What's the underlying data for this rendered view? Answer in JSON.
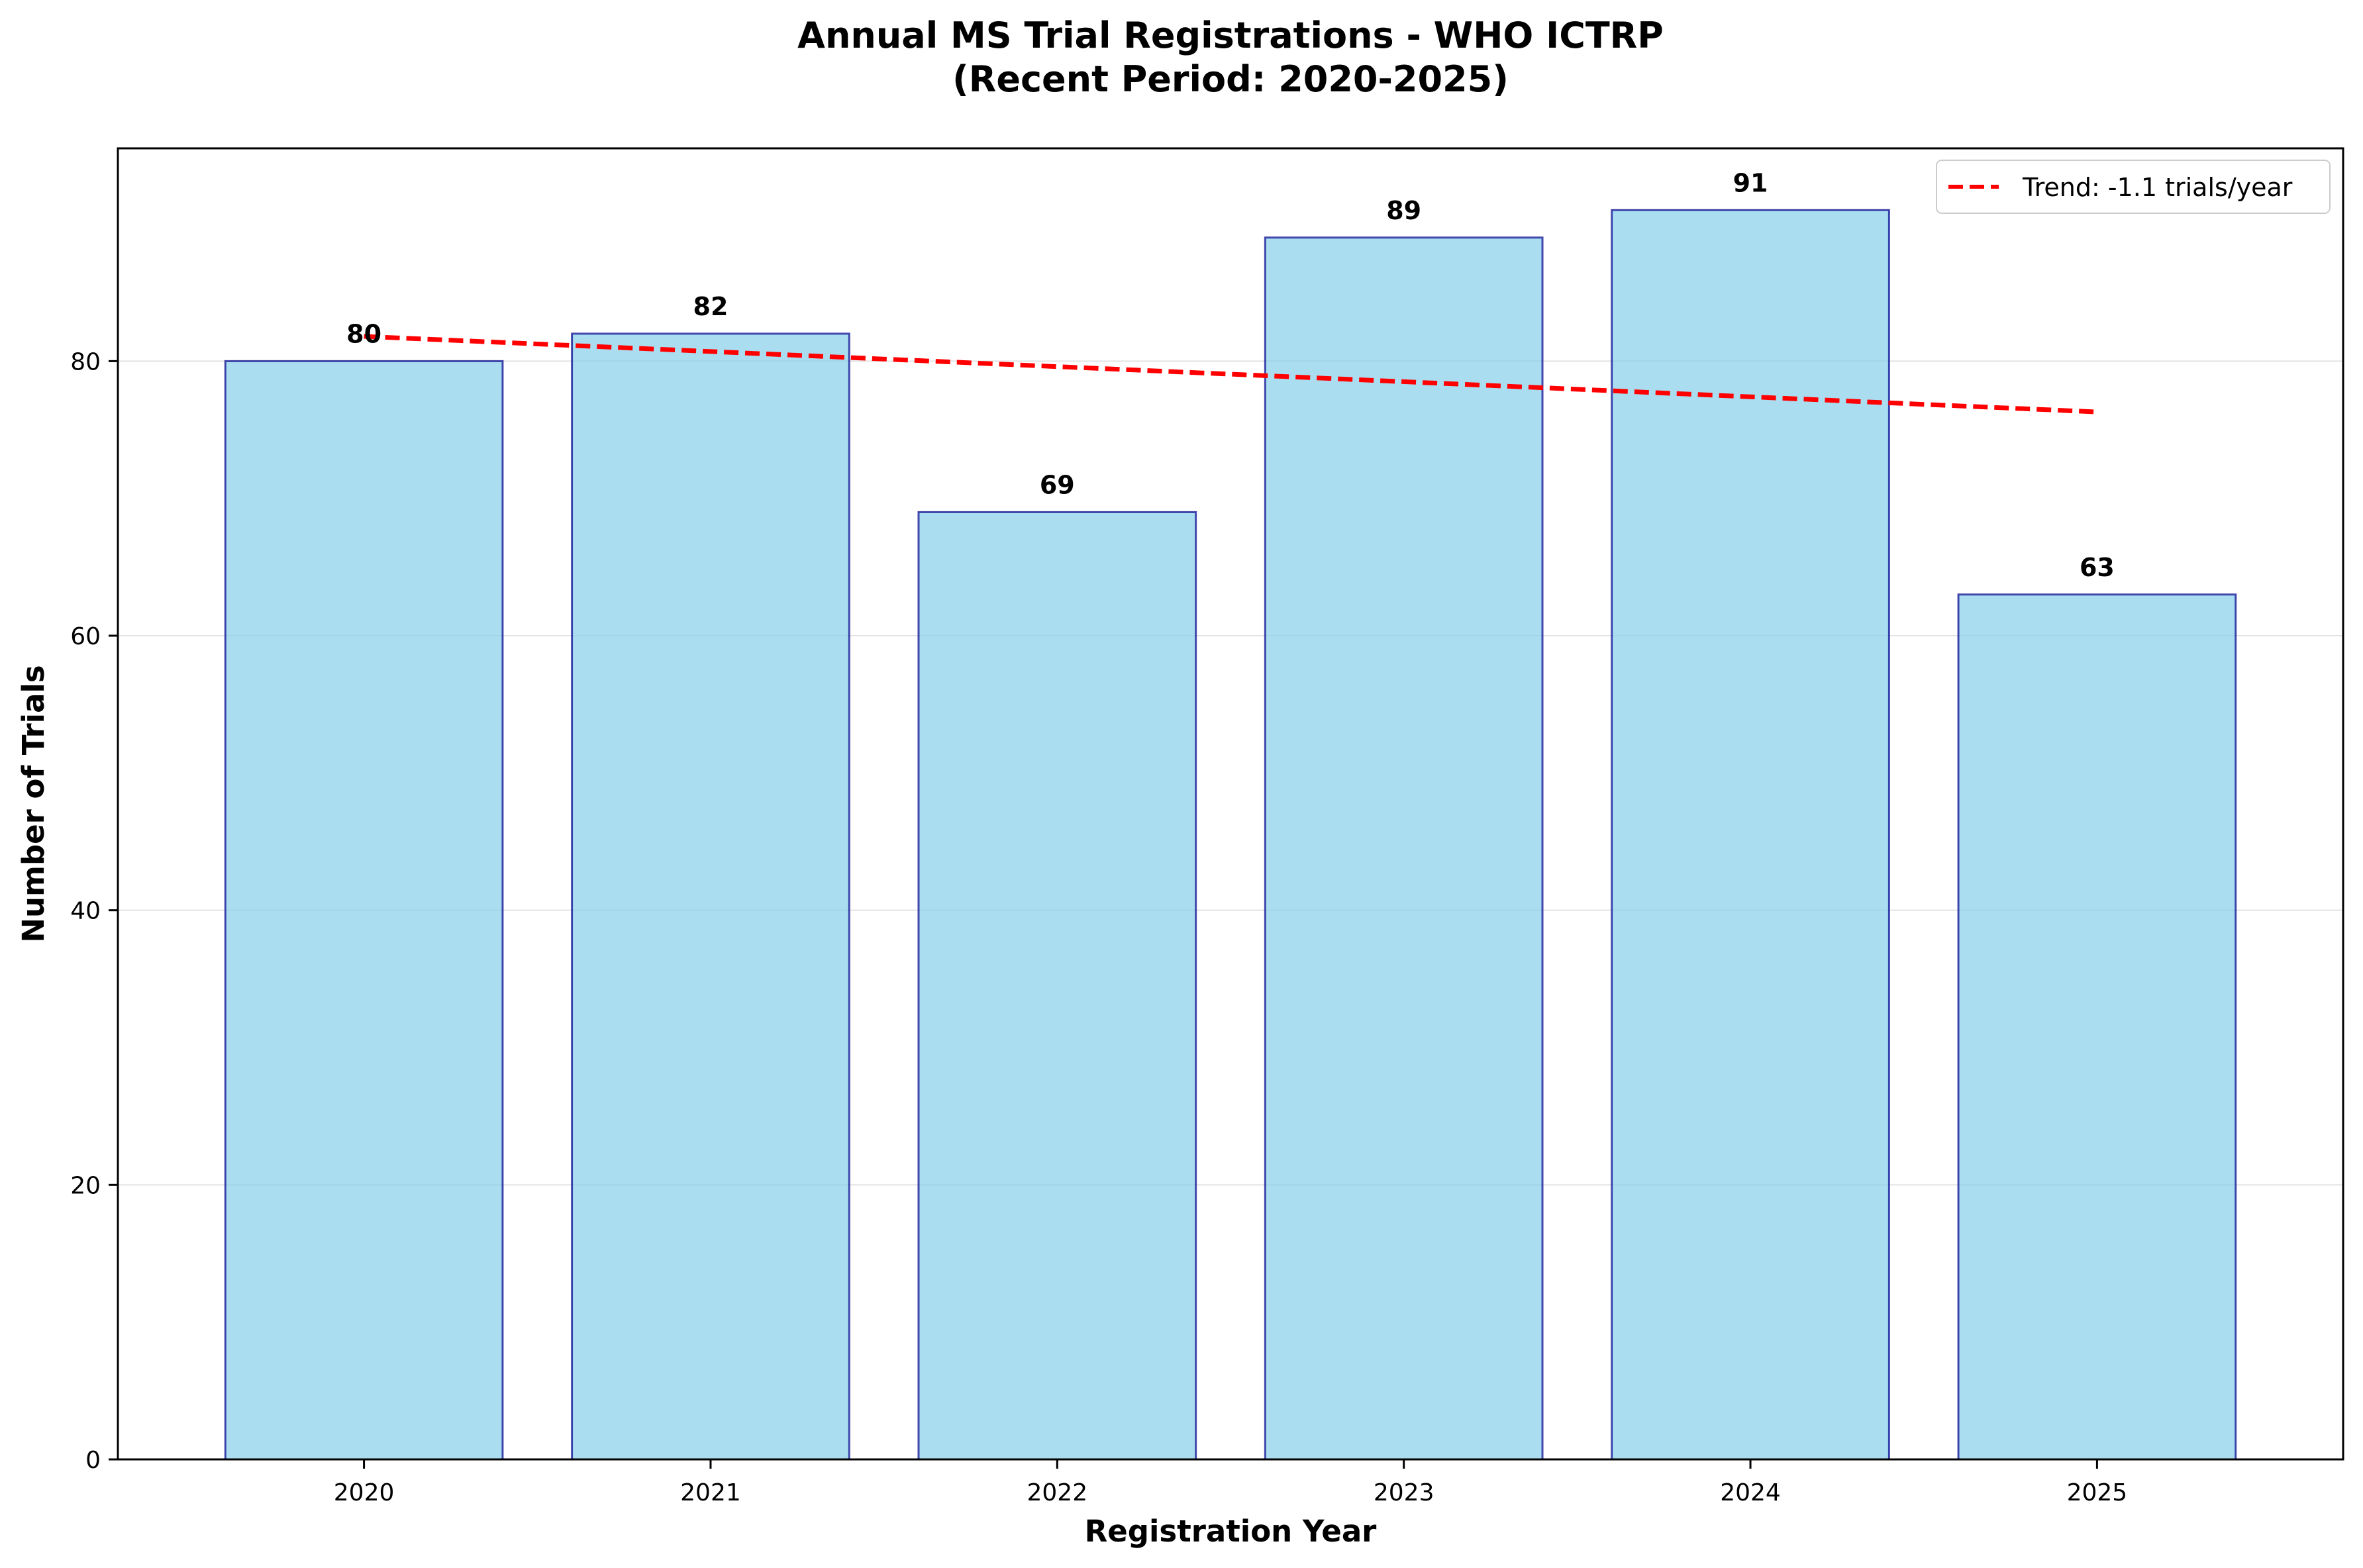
{
  "chart_data": {
    "type": "bar",
    "title": "Annual MS Trial Registrations - WHO ICTRP",
    "subtitle": "(Recent Period: 2020-2025)",
    "xlabel": "Registration Year",
    "ylabel": "Number of Trials",
    "categories": [
      "2020",
      "2021",
      "2022",
      "2023",
      "2024",
      "2025"
    ],
    "values": [
      80,
      82,
      69,
      89,
      91,
      63
    ],
    "ylim": [
      0,
      95.5
    ],
    "yticks": [
      0,
      20,
      40,
      60,
      80
    ],
    "grid": "horizontal",
    "bar_color": "#87CEEB",
    "bar_edge_color": "#00008B",
    "trend": {
      "label": "Trend: -1.1 trials/year",
      "start_value": 81.8,
      "slope": -1.1,
      "color": "#FF0000",
      "style": "dashed"
    },
    "legend_position": "top-right"
  }
}
